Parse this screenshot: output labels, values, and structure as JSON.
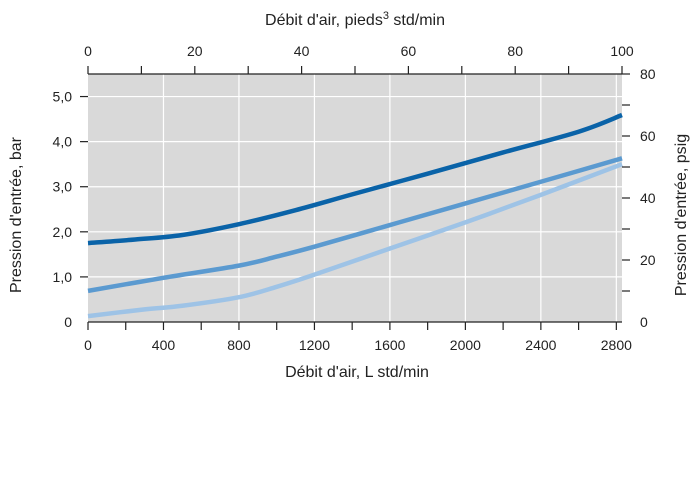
{
  "chart_data": {
    "type": "line",
    "x_bottom": {
      "label": "Débit d'air, L std/min",
      "range": [
        0,
        2830
      ],
      "ticks": [
        0,
        400,
        800,
        1200,
        1600,
        2000,
        2400,
        2800
      ],
      "tick_labels": [
        "0",
        "400",
        "800",
        "1200",
        "1600",
        "2000",
        "2400",
        "2800"
      ],
      "minor_ticks": [
        200,
        600,
        1000,
        1400,
        1800,
        2200,
        2600
      ]
    },
    "x_top": {
      "label": "Débit d'air, pieds",
      "label_sup": "3",
      "label_tail": " std/min",
      "range": [
        0,
        100
      ],
      "ticks": [
        0,
        20,
        40,
        60,
        80,
        100
      ],
      "tick_labels": [
        "0",
        "20",
        "40",
        "60",
        "80",
        "100"
      ],
      "minor_ticks": [
        10,
        30,
        50,
        70,
        90
      ]
    },
    "y_left": {
      "label": "Pression d'entrée, bar",
      "range": [
        0,
        5.5
      ],
      "ticks": [
        0,
        1,
        2,
        3,
        4,
        5
      ],
      "tick_labels": [
        "0",
        "1,0",
        "2,0",
        "3,0",
        "4,0",
        "5,0"
      ]
    },
    "y_right": {
      "label": "Pression d'entrée, psig",
      "range": [
        0,
        80
      ],
      "ticks": [
        0,
        20,
        40,
        60,
        80
      ],
      "tick_labels": [
        "0",
        "20",
        "40",
        "60",
        "80"
      ],
      "minor_ticks": [
        10,
        30,
        50,
        70
      ]
    },
    "grid": true,
    "background": "#d9d9d9",
    "series": [
      {
        "color": "#0a63a8",
        "x": [
          0,
          250,
          500,
          800,
          1100,
          1400,
          1800,
          2200,
          2600,
          2830
        ],
        "y": [
          1.75,
          1.83,
          1.93,
          2.17,
          2.48,
          2.83,
          3.29,
          3.76,
          4.22,
          4.59
        ]
      },
      {
        "color": "#5b9ad0",
        "x": [
          0,
          400,
          800,
          1000,
          1200,
          1600,
          2000,
          2400,
          2830
        ],
        "y": [
          0.69,
          0.98,
          1.25,
          1.45,
          1.67,
          2.15,
          2.63,
          3.11,
          3.63
        ]
      },
      {
        "color": "#9ec3e6",
        "x": [
          0,
          300,
          500,
          800,
          1000,
          1200,
          1600,
          2000,
          2400,
          2830
        ],
        "y": [
          0.13,
          0.28,
          0.36,
          0.55,
          0.78,
          1.05,
          1.63,
          2.21,
          2.82,
          3.5
        ]
      }
    ]
  }
}
